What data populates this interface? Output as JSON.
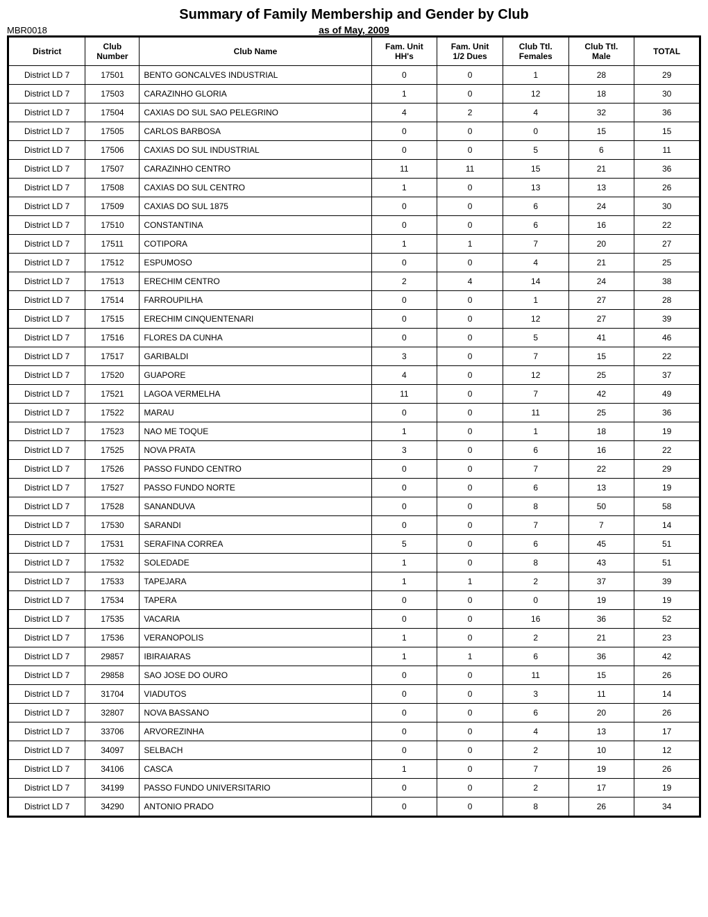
{
  "title": "Summary of Family Membership and Gender by Club",
  "report_id": "MBR0018",
  "subtitle": "as of May, 2009",
  "headers": {
    "district": "District",
    "club_number": "Club\nNumber",
    "club_name": "Club Name",
    "fam_unit_hh": "Fam. Unit\nHH's",
    "fam_unit_dues": "Fam. Unit\n1/2 Dues",
    "club_females": "Club Ttl.\nFemales",
    "club_male": "Club Ttl.\nMale",
    "total": "TOTAL"
  },
  "rows": [
    {
      "district": "District LD 7",
      "number": "17501",
      "name": "BENTO GONCALVES INDUSTRIAL",
      "hh": "0",
      "dues": "0",
      "females": "1",
      "male": "28",
      "total": "29"
    },
    {
      "district": "District LD 7",
      "number": "17503",
      "name": "CARAZINHO GLORIA",
      "hh": "1",
      "dues": "0",
      "females": "12",
      "male": "18",
      "total": "30"
    },
    {
      "district": "District LD 7",
      "number": "17504",
      "name": "CAXIAS DO SUL SAO PELEGRINO",
      "hh": "4",
      "dues": "2",
      "females": "4",
      "male": "32",
      "total": "36"
    },
    {
      "district": "District LD 7",
      "number": "17505",
      "name": "CARLOS BARBOSA",
      "hh": "0",
      "dues": "0",
      "females": "0",
      "male": "15",
      "total": "15"
    },
    {
      "district": "District LD 7",
      "number": "17506",
      "name": "CAXIAS DO SUL INDUSTRIAL",
      "hh": "0",
      "dues": "0",
      "females": "5",
      "male": "6",
      "total": "11"
    },
    {
      "district": "District LD 7",
      "number": "17507",
      "name": "CARAZINHO CENTRO",
      "hh": "11",
      "dues": "11",
      "females": "15",
      "male": "21",
      "total": "36"
    },
    {
      "district": "District LD 7",
      "number": "17508",
      "name": "CAXIAS DO SUL CENTRO",
      "hh": "1",
      "dues": "0",
      "females": "13",
      "male": "13",
      "total": "26"
    },
    {
      "district": "District LD 7",
      "number": "17509",
      "name": "CAXIAS DO SUL 1875",
      "hh": "0",
      "dues": "0",
      "females": "6",
      "male": "24",
      "total": "30"
    },
    {
      "district": "District LD 7",
      "number": "17510",
      "name": "CONSTANTINA",
      "hh": "0",
      "dues": "0",
      "females": "6",
      "male": "16",
      "total": "22"
    },
    {
      "district": "District LD 7",
      "number": "17511",
      "name": "COTIPORA",
      "hh": "1",
      "dues": "1",
      "females": "7",
      "male": "20",
      "total": "27"
    },
    {
      "district": "District LD 7",
      "number": "17512",
      "name": "ESPUMOSO",
      "hh": "0",
      "dues": "0",
      "females": "4",
      "male": "21",
      "total": "25"
    },
    {
      "district": "District LD 7",
      "number": "17513",
      "name": "ERECHIM CENTRO",
      "hh": "2",
      "dues": "4",
      "females": "14",
      "male": "24",
      "total": "38"
    },
    {
      "district": "District LD 7",
      "number": "17514",
      "name": "FARROUPILHA",
      "hh": "0",
      "dues": "0",
      "females": "1",
      "male": "27",
      "total": "28"
    },
    {
      "district": "District LD 7",
      "number": "17515",
      "name": "ERECHIM CINQUENTENARI",
      "hh": "0",
      "dues": "0",
      "females": "12",
      "male": "27",
      "total": "39"
    },
    {
      "district": "District LD 7",
      "number": "17516",
      "name": "FLORES DA CUNHA",
      "hh": "0",
      "dues": "0",
      "females": "5",
      "male": "41",
      "total": "46"
    },
    {
      "district": "District LD 7",
      "number": "17517",
      "name": "GARIBALDI",
      "hh": "3",
      "dues": "0",
      "females": "7",
      "male": "15",
      "total": "22"
    },
    {
      "district": "District LD 7",
      "number": "17520",
      "name": "GUAPORE",
      "hh": "4",
      "dues": "0",
      "females": "12",
      "male": "25",
      "total": "37"
    },
    {
      "district": "District LD 7",
      "number": "17521",
      "name": "LAGOA VERMELHA",
      "hh": "11",
      "dues": "0",
      "females": "7",
      "male": "42",
      "total": "49"
    },
    {
      "district": "District LD 7",
      "number": "17522",
      "name": "MARAU",
      "hh": "0",
      "dues": "0",
      "females": "11",
      "male": "25",
      "total": "36"
    },
    {
      "district": "District LD 7",
      "number": "17523",
      "name": "NAO ME TOQUE",
      "hh": "1",
      "dues": "0",
      "females": "1",
      "male": "18",
      "total": "19"
    },
    {
      "district": "District LD 7",
      "number": "17525",
      "name": "NOVA PRATA",
      "hh": "3",
      "dues": "0",
      "females": "6",
      "male": "16",
      "total": "22"
    },
    {
      "district": "District LD 7",
      "number": "17526",
      "name": "PASSO FUNDO CENTRO",
      "hh": "0",
      "dues": "0",
      "females": "7",
      "male": "22",
      "total": "29"
    },
    {
      "district": "District LD 7",
      "number": "17527",
      "name": "PASSO FUNDO NORTE",
      "hh": "0",
      "dues": "0",
      "females": "6",
      "male": "13",
      "total": "19"
    },
    {
      "district": "District LD 7",
      "number": "17528",
      "name": "SANANDUVA",
      "hh": "0",
      "dues": "0",
      "females": "8",
      "male": "50",
      "total": "58"
    },
    {
      "district": "District LD 7",
      "number": "17530",
      "name": "SARANDI",
      "hh": "0",
      "dues": "0",
      "females": "7",
      "male": "7",
      "total": "14"
    },
    {
      "district": "District LD 7",
      "number": "17531",
      "name": "SERAFINA CORREA",
      "hh": "5",
      "dues": "0",
      "females": "6",
      "male": "45",
      "total": "51"
    },
    {
      "district": "District LD 7",
      "number": "17532",
      "name": "SOLEDADE",
      "hh": "1",
      "dues": "0",
      "females": "8",
      "male": "43",
      "total": "51"
    },
    {
      "district": "District LD 7",
      "number": "17533",
      "name": "TAPEJARA",
      "hh": "1",
      "dues": "1",
      "females": "2",
      "male": "37",
      "total": "39"
    },
    {
      "district": "District LD 7",
      "number": "17534",
      "name": "TAPERA",
      "hh": "0",
      "dues": "0",
      "females": "0",
      "male": "19",
      "total": "19"
    },
    {
      "district": "District LD 7",
      "number": "17535",
      "name": "VACARIA",
      "hh": "0",
      "dues": "0",
      "females": "16",
      "male": "36",
      "total": "52"
    },
    {
      "district": "District LD 7",
      "number": "17536",
      "name": "VERANOPOLIS",
      "hh": "1",
      "dues": "0",
      "females": "2",
      "male": "21",
      "total": "23"
    },
    {
      "district": "District LD 7",
      "number": "29857",
      "name": "IBIRAIARAS",
      "hh": "1",
      "dues": "1",
      "females": "6",
      "male": "36",
      "total": "42"
    },
    {
      "district": "District LD 7",
      "number": "29858",
      "name": "SAO JOSE DO OURO",
      "hh": "0",
      "dues": "0",
      "females": "11",
      "male": "15",
      "total": "26"
    },
    {
      "district": "District LD 7",
      "number": "31704",
      "name": "VIADUTOS",
      "hh": "0",
      "dues": "0",
      "females": "3",
      "male": "11",
      "total": "14"
    },
    {
      "district": "District LD 7",
      "number": "32807",
      "name": "NOVA BASSANO",
      "hh": "0",
      "dues": "0",
      "females": "6",
      "male": "20",
      "total": "26"
    },
    {
      "district": "District LD 7",
      "number": "33706",
      "name": "ARVOREZINHA",
      "hh": "0",
      "dues": "0",
      "females": "4",
      "male": "13",
      "total": "17"
    },
    {
      "district": "District LD 7",
      "number": "34097",
      "name": "SELBACH",
      "hh": "0",
      "dues": "0",
      "females": "2",
      "male": "10",
      "total": "12"
    },
    {
      "district": "District LD 7",
      "number": "34106",
      "name": "CASCA",
      "hh": "1",
      "dues": "0",
      "females": "7",
      "male": "19",
      "total": "26"
    },
    {
      "district": "District LD 7",
      "number": "34199",
      "name": "PASSO FUNDO UNIVERSITARIO",
      "hh": "0",
      "dues": "0",
      "females": "2",
      "male": "17",
      "total": "19"
    },
    {
      "district": "District LD 7",
      "number": "34290",
      "name": "ANTONIO PRADO",
      "hh": "0",
      "dues": "0",
      "females": "8",
      "male": "26",
      "total": "34"
    }
  ]
}
